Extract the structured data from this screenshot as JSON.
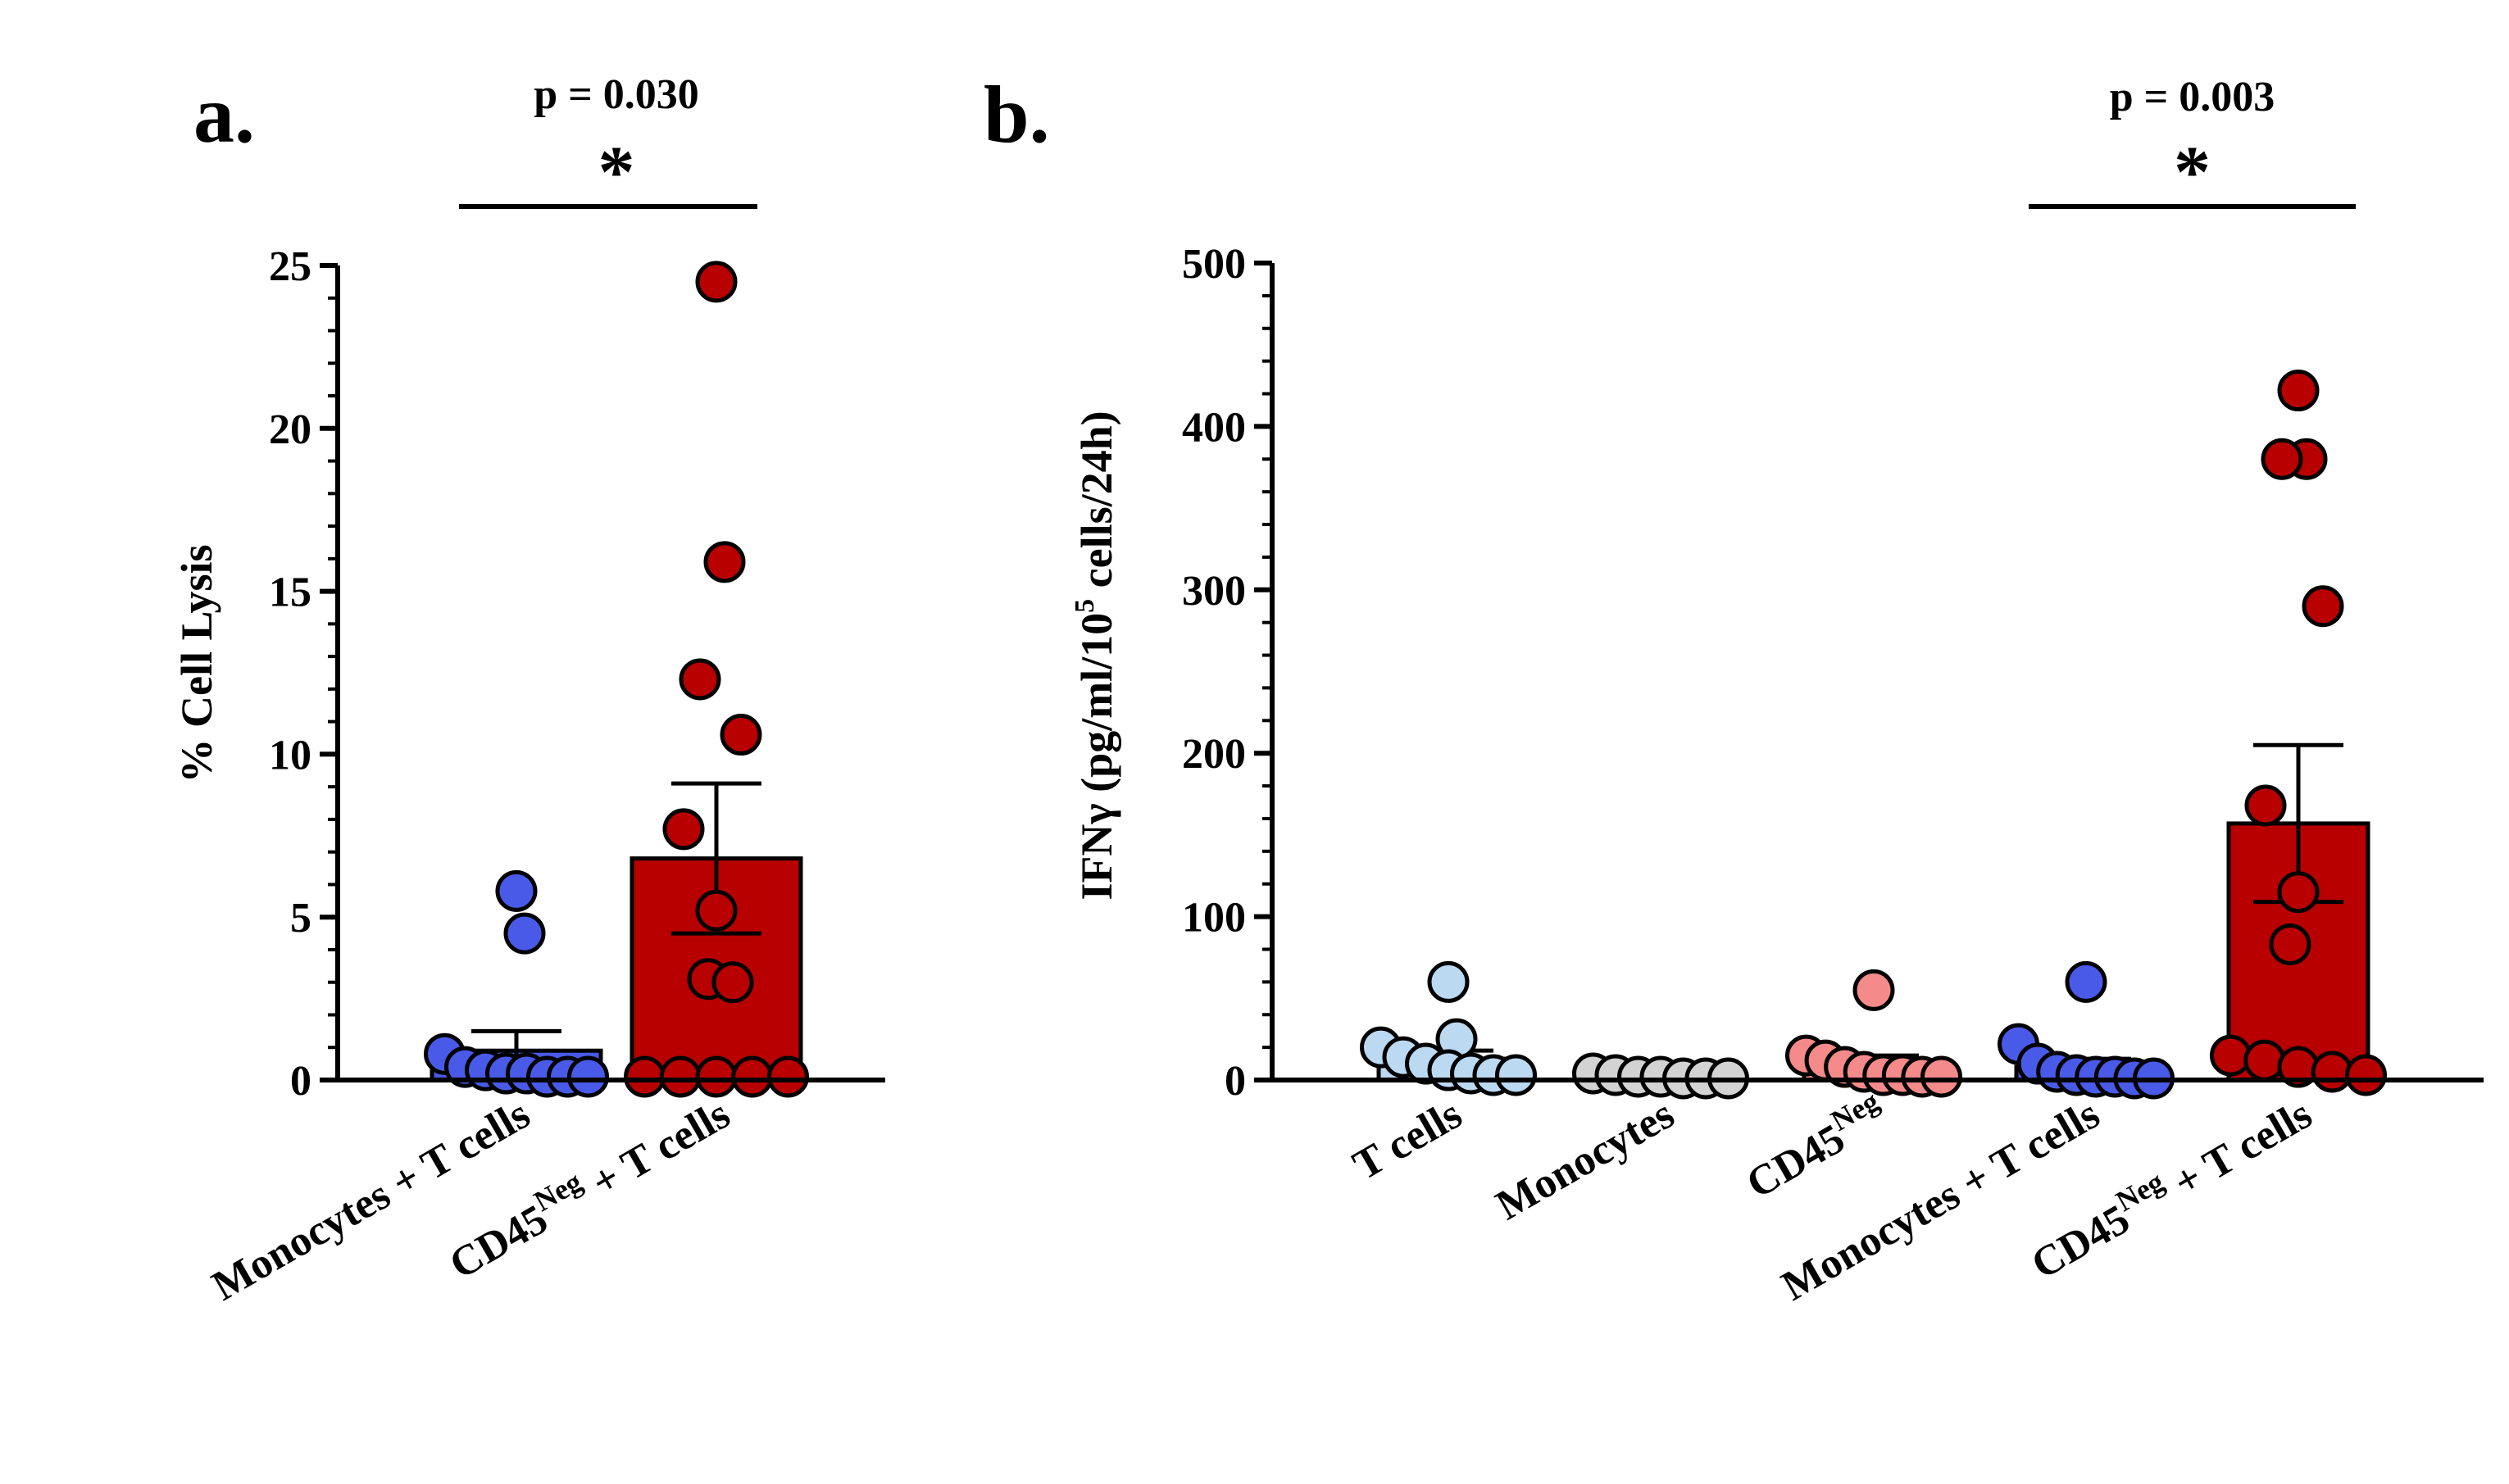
{
  "chart_data": [
    {
      "panel": "a.",
      "type": "bar",
      "ylabel": "% Cell Lysis",
      "ylim": [
        0,
        25
      ],
      "yticks": [
        0,
        5,
        10,
        15,
        20,
        25
      ],
      "categories": [
        {
          "base": "Monocytes + T cells",
          "sup": "",
          "rest": ""
        },
        {
          "base": "CD45",
          "sup": "Neg",
          "rest": " + T cells"
        }
      ],
      "bars": [
        {
          "mean": 0.9,
          "sem": 0.6,
          "fill": "#4a5ae8",
          "edge": "#000000",
          "points": [
            5.8,
            4.5,
            0.8,
            0.4,
            0.3,
            0.2,
            0.2,
            0.1,
            0.1,
            0.1
          ]
        },
        {
          "mean": 6.8,
          "sem": 2.3,
          "fill": "#b80000",
          "edge": "#000000",
          "points": [
            24.5,
            15.9,
            12.3,
            10.6,
            7.7,
            5.2,
            3.1,
            3.0,
            0.1,
            0.1,
            0.1,
            0.1,
            0.1
          ]
        }
      ],
      "significance": {
        "from": 0,
        "to": 1,
        "p_text": "p = 0.030",
        "star": "*"
      }
    },
    {
      "panel": "b.",
      "type": "bar",
      "ylabel": {
        "base": "IFNγ (pg/ml/10",
        "sup": "5",
        "rest": " cells/24h)"
      },
      "ylim": [
        0,
        500
      ],
      "yticks": [
        0,
        100,
        200,
        300,
        400,
        500
      ],
      "categories": [
        {
          "base": "T cells",
          "sup": "",
          "rest": ""
        },
        {
          "base": "Monocytes",
          "sup": "",
          "rest": ""
        },
        {
          "base": "CD45",
          "sup": "Neg",
          "rest": ""
        },
        {
          "base": "Monocytes + T cells",
          "sup": "",
          "rest": ""
        },
        {
          "base": "CD45",
          "sup": "Neg",
          "rest": " + T cells"
        }
      ],
      "bars": [
        {
          "mean": 13,
          "sem": 5,
          "fill": "#bcd9f2",
          "edge": "#000000",
          "points": [
            60,
            25,
            20,
            14,
            10,
            6,
            4,
            3,
            3
          ]
        },
        {
          "mean": 2,
          "sem": 1,
          "fill": "#d3d3d3",
          "edge": "#000000",
          "points": [
            4,
            3,
            2,
            2,
            1,
            1,
            1
          ]
        },
        {
          "mean": 10,
          "sem": 5,
          "fill": "#f48a8a",
          "edge": "#000000",
          "points": [
            55,
            15,
            12,
            8,
            5,
            3,
            3,
            2,
            2
          ]
        },
        {
          "mean": 8,
          "sem": 5,
          "fill": "#4a5ae8",
          "edge": "#000000",
          "points": [
            60,
            22,
            10,
            5,
            3,
            2,
            2,
            1,
            1
          ]
        },
        {
          "mean": 157,
          "sem": 48,
          "fill": "#b80000",
          "edge": "#000000",
          "points": [
            422,
            380,
            380,
            290,
            168,
            115,
            83,
            15,
            12,
            8,
            5,
            3
          ]
        }
      ],
      "significance": {
        "from": 3,
        "to": 4,
        "p_text": "p = 0.003",
        "star": "*"
      }
    }
  ]
}
